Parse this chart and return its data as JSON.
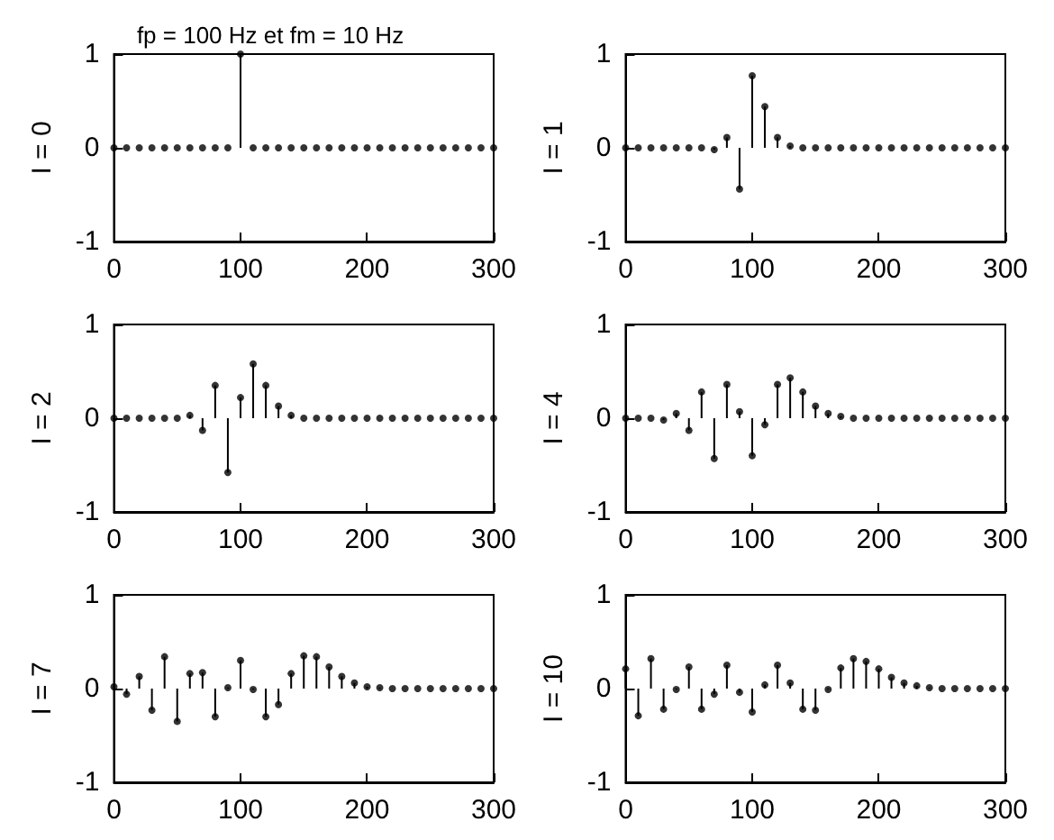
{
  "chart_data": [
    {
      "type": "lollipop",
      "title": "fp = 100 Hz et fm = 10 Hz",
      "ylabel": "I = 0",
      "color": "#000000",
      "marker": "circle",
      "xlim": [
        0,
        300
      ],
      "xticks": [
        0,
        100,
        200,
        300
      ],
      "ylim": [
        -1,
        1
      ],
      "yticks": [
        -1,
        0,
        1
      ],
      "x": [
        0,
        10,
        20,
        30,
        40,
        50,
        60,
        70,
        80,
        90,
        100,
        110,
        120,
        130,
        140,
        150,
        160,
        170,
        180,
        190,
        200,
        210,
        220,
        230,
        240,
        250,
        260,
        270,
        280,
        290,
        300
      ],
      "values": [
        0,
        0,
        0,
        0,
        0,
        0,
        0,
        0,
        0,
        0,
        1,
        0,
        0,
        0,
        0,
        0,
        0,
        0,
        0,
        0,
        0,
        0,
        0,
        0,
        0,
        0,
        0,
        0,
        0,
        0,
        0
      ]
    },
    {
      "type": "lollipop",
      "ylabel": "I = 1",
      "color": "#000000",
      "marker": "circle",
      "xlim": [
        0,
        300
      ],
      "xticks": [
        0,
        100,
        200,
        300
      ],
      "ylim": [
        -1,
        1
      ],
      "yticks": [
        -1,
        0,
        1
      ],
      "x": [
        0,
        10,
        20,
        30,
        40,
        50,
        60,
        70,
        80,
        90,
        100,
        110,
        120,
        130,
        140,
        150,
        160,
        170,
        180,
        190,
        200,
        210,
        220,
        230,
        240,
        250,
        260,
        270,
        280,
        290,
        300
      ],
      "values": [
        0,
        0,
        0,
        0,
        0,
        0,
        0,
        -0.02,
        0.11,
        -0.44,
        0.77,
        0.44,
        0.11,
        0.02,
        0,
        0,
        0,
        0,
        0,
        0,
        0,
        0,
        0,
        0,
        0,
        0,
        0,
        0,
        0,
        0,
        0
      ]
    },
    {
      "type": "lollipop",
      "ylabel": "I = 2",
      "color": "#000000",
      "marker": "circle",
      "xlim": [
        0,
        300
      ],
      "xticks": [
        0,
        100,
        200,
        300
      ],
      "ylim": [
        -1,
        1
      ],
      "yticks": [
        -1,
        0,
        1
      ],
      "x": [
        0,
        10,
        20,
        30,
        40,
        50,
        60,
        70,
        80,
        90,
        100,
        110,
        120,
        130,
        140,
        150,
        160,
        170,
        180,
        190,
        200,
        210,
        220,
        230,
        240,
        250,
        260,
        270,
        280,
        290,
        300
      ],
      "values": [
        0,
        0,
        0,
        0,
        0,
        0,
        0.03,
        -0.13,
        0.35,
        -0.58,
        0.22,
        0.58,
        0.35,
        0.13,
        0.03,
        0,
        0,
        0,
        0,
        0,
        0,
        0,
        0,
        0,
        0,
        0,
        0,
        0,
        0,
        0,
        0
      ]
    },
    {
      "type": "lollipop",
      "ylabel": "I = 4",
      "color": "#000000",
      "marker": "circle",
      "xlim": [
        0,
        300
      ],
      "xticks": [
        0,
        100,
        200,
        300
      ],
      "ylim": [
        -1,
        1
      ],
      "yticks": [
        -1,
        0,
        1
      ],
      "x": [
        0,
        10,
        20,
        30,
        40,
        50,
        60,
        70,
        80,
        90,
        100,
        110,
        120,
        130,
        140,
        150,
        160,
        170,
        180,
        190,
        200,
        210,
        220,
        230,
        240,
        250,
        260,
        270,
        280,
        290,
        300
      ],
      "values": [
        0,
        0,
        0,
        -0.02,
        0.05,
        -0.13,
        0.28,
        -0.43,
        0.36,
        0.07,
        -0.4,
        -0.07,
        0.36,
        0.43,
        0.28,
        0.13,
        0.05,
        0.02,
        0,
        0,
        0,
        0,
        0,
        0,
        0,
        0,
        0,
        0,
        0,
        0,
        0
      ]
    },
    {
      "type": "lollipop",
      "ylabel": "I = 7",
      "color": "#000000",
      "marker": "circle",
      "xlim": [
        0,
        300
      ],
      "xticks": [
        0,
        100,
        200,
        300
      ],
      "ylim": [
        -1,
        1
      ],
      "yticks": [
        -1,
        0,
        1
      ],
      "x": [
        0,
        10,
        20,
        30,
        40,
        50,
        60,
        70,
        80,
        90,
        100,
        110,
        120,
        130,
        140,
        150,
        160,
        170,
        180,
        190,
        200,
        210,
        220,
        230,
        240,
        250,
        260,
        270,
        280,
        290,
        300
      ],
      "values": [
        0.02,
        -0.06,
        0.13,
        -0.23,
        0.34,
        -0.35,
        0.16,
        0.17,
        -0.3,
        0.01,
        0.3,
        -0.01,
        -0.3,
        -0.17,
        0.16,
        0.35,
        0.34,
        0.23,
        0.13,
        0.06,
        0.02,
        0.01,
        0,
        0,
        0,
        0,
        0,
        0,
        0,
        0,
        0
      ]
    },
    {
      "type": "lollipop",
      "ylabel": "I = 10",
      "color": "#000000",
      "marker": "circle",
      "xlim": [
        0,
        300
      ],
      "xticks": [
        0,
        100,
        200,
        300
      ],
      "ylim": [
        -1,
        1
      ],
      "yticks": [
        -1,
        0,
        1
      ],
      "x": [
        0,
        10,
        20,
        30,
        40,
        50,
        60,
        70,
        80,
        90,
        100,
        110,
        120,
        130,
        140,
        150,
        160,
        170,
        180,
        190,
        200,
        210,
        220,
        230,
        240,
        250,
        260,
        270,
        280,
        290,
        300
      ],
      "values": [
        0.21,
        -0.29,
        0.32,
        -0.22,
        -0.01,
        0.23,
        -0.22,
        -0.06,
        0.25,
        -0.04,
        -0.25,
        0.04,
        0.25,
        0.06,
        -0.22,
        -0.23,
        -0.01,
        0.22,
        0.32,
        0.29,
        0.21,
        0.12,
        0.06,
        0.03,
        0.01,
        0,
        0,
        0,
        0,
        0,
        0
      ]
    }
  ]
}
